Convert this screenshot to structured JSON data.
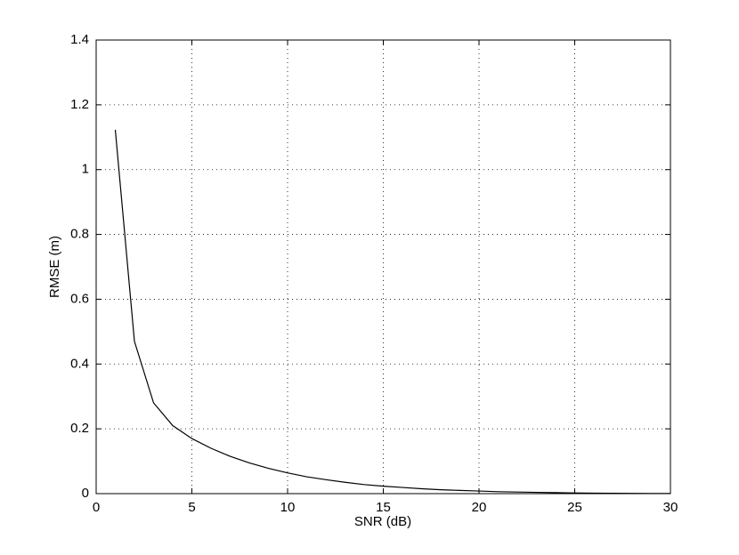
{
  "chart_data": {
    "type": "line",
    "xlabel": "SNR (dB)",
    "ylabel": "RMSE (m)",
    "x": [
      1,
      2,
      3,
      4,
      5,
      6,
      7,
      8,
      9,
      10,
      11,
      12,
      13,
      14,
      15,
      16,
      17,
      18,
      19,
      20,
      21,
      22,
      23,
      24,
      25,
      26,
      27,
      28,
      29,
      30
    ],
    "values": [
      1.123,
      0.47,
      0.28,
      0.21,
      0.17,
      0.14,
      0.115,
      0.095,
      0.078,
      0.064,
      0.052,
      0.043,
      0.035,
      0.028,
      0.023,
      0.019,
      0.015,
      0.012,
      0.01,
      0.008,
      0.006,
      0.005,
      0.004,
      0.003,
      0.002,
      0.0015,
      0.001,
      0.0008,
      0.0005,
      0.0003
    ],
    "color": "#000000",
    "xlim": [
      0,
      30
    ],
    "xticks": [
      0,
      5,
      10,
      15,
      20,
      25,
      30
    ],
    "ylim": [
      0,
      1.4
    ],
    "yticks": [
      0,
      0.2,
      0.4,
      0.6,
      0.8,
      1,
      1.2,
      1.4
    ],
    "grid": true
  }
}
